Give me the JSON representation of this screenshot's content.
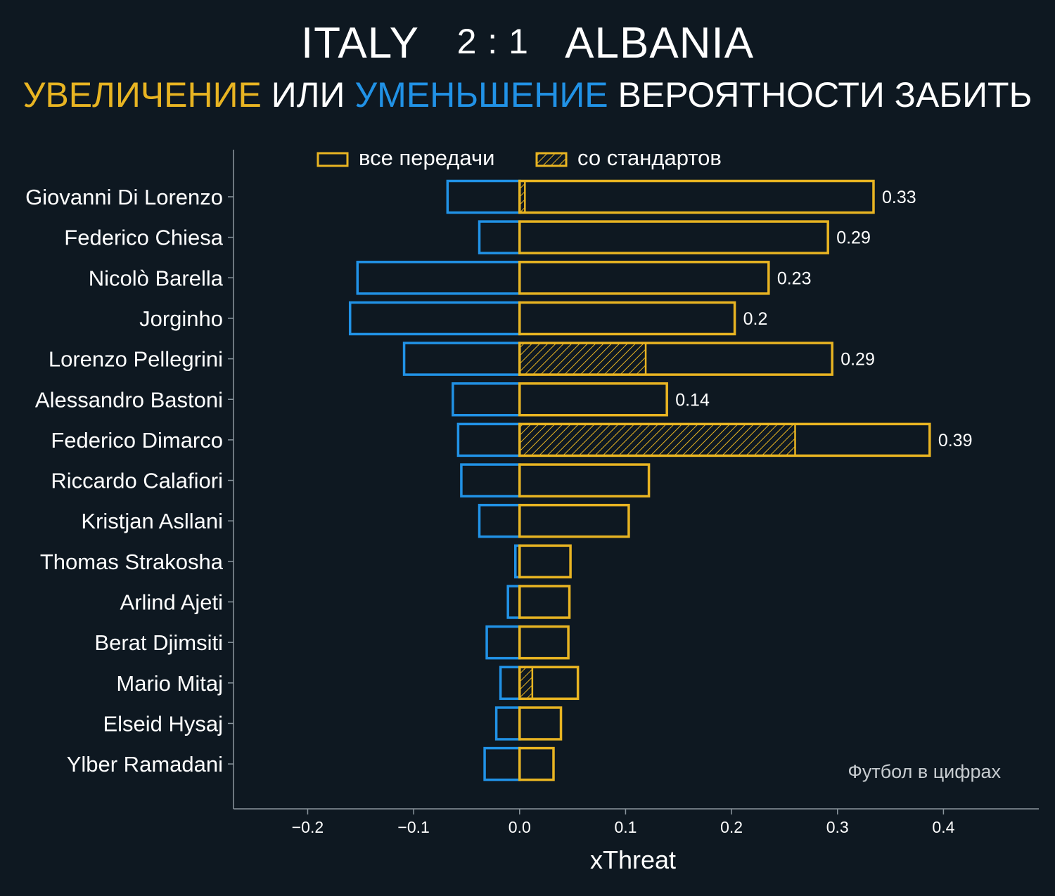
{
  "header": {
    "home_team": "ITALY",
    "score": "2 : 1",
    "away_team": "ALBANIA",
    "subtitle": {
      "increase": "УВЕЛИЧЕНИЕ",
      "or": "ИЛИ",
      "decrease": "УМЕНЬШЕНИЕ",
      "rest": "ВЕРОЯТНОСТИ ЗАБИТЬ"
    }
  },
  "colors": {
    "background": "#0e1821",
    "increase": "#e8b422",
    "decrease": "#2192e6",
    "text": "#ffffff",
    "axis": "#8b969e",
    "credit": "#c7ccd0"
  },
  "credit": "Футбол в цифрах",
  "chart_data": {
    "type": "bar",
    "orientation": "horizontal",
    "xlabel": "xThreat",
    "xlim": [
      -0.27,
      0.49
    ],
    "xticks": [
      -0.2,
      -0.1,
      0.0,
      0.1,
      0.2,
      0.3,
      0.4
    ],
    "xtick_labels": [
      "−0.2",
      "−0.1",
      "0.0",
      "0.1",
      "0.2",
      "0.3",
      "0.4"
    ],
    "legend": {
      "position": "top",
      "items": [
        "все передачи",
        "со стандартов"
      ]
    },
    "categories": [
      "Giovanni Di Lorenzo",
      "Federico Chiesa",
      "Nicolò Barella",
      "Jorginho",
      "Lorenzo Pellegrini",
      "Alessandro Bastoni",
      "Federico Dimarco",
      "Riccardo Calafiori",
      "Kristjan Asllani",
      "Thomas Strakosha",
      "Arlind Ajeti",
      "Berat Djimsiti",
      "Mario Mitaj",
      "Elseid Hysaj",
      "Ylber Ramadani"
    ],
    "series": [
      {
        "name": "все передачи",
        "kind": "positive",
        "values": [
          0.334,
          0.291,
          0.235,
          0.203,
          0.295,
          0.139,
          0.387,
          0.122,
          0.103,
          0.048,
          0.047,
          0.046,
          0.055,
          0.039,
          0.032
        ]
      },
      {
        "name": "все передачи",
        "kind": "negative",
        "values": [
          -0.068,
          -0.038,
          -0.153,
          -0.16,
          -0.109,
          -0.063,
          -0.058,
          -0.055,
          -0.038,
          -0.004,
          -0.011,
          -0.031,
          -0.018,
          -0.022,
          -0.033
        ]
      },
      {
        "name": "со стандартов",
        "kind": "set-pieces",
        "values": [
          0.005,
          0,
          0,
          0,
          0.119,
          0,
          0.26,
          0,
          0,
          0,
          0,
          0,
          0.012,
          0,
          0
        ]
      }
    ],
    "data_labels": [
      "0.33",
      "0.29",
      "0.23",
      "0.2",
      "0.29",
      "0.14",
      "0.39",
      "",
      "",
      "",
      "",
      "",
      "",
      "",
      ""
    ]
  }
}
